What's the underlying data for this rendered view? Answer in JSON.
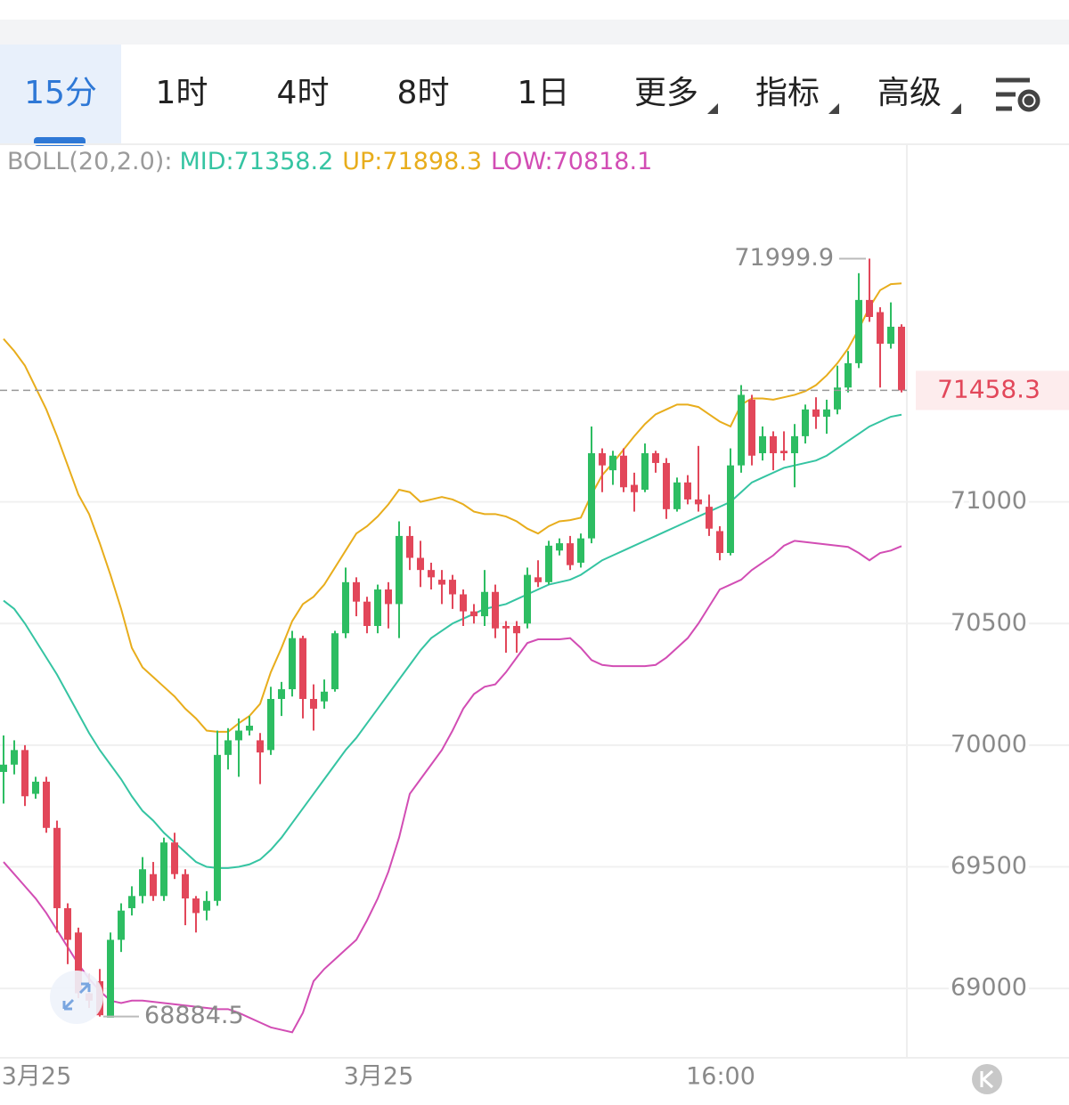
{
  "tabs": [
    "15分",
    "1时",
    "4时",
    "8时",
    "1日",
    "更多",
    "指标",
    "高级"
  ],
  "chart_data": {
    "type": "candlestick",
    "indicator_label": "BOLL(20,2.0):",
    "categories": [
      null,
      null,
      null,
      "3月25",
      null,
      null,
      null,
      null,
      null,
      null,
      null,
      null,
      null,
      null,
      null,
      null,
      null,
      null,
      null,
      null,
      null,
      null,
      null,
      null,
      null,
      null,
      null,
      null,
      null,
      null,
      null,
      null,
      null,
      null,
      null,
      "3月25",
      null,
      null,
      null,
      null,
      null,
      null,
      null,
      null,
      null,
      null,
      null,
      null,
      null,
      null,
      null,
      null,
      null,
      null,
      null,
      null,
      null,
      null,
      null,
      null,
      null,
      null,
      null,
      null,
      null,
      null,
      null,
      "16:00",
      null,
      null,
      null,
      null,
      null,
      null,
      null,
      null,
      null,
      null,
      null,
      null,
      null,
      null,
      null,
      null,
      null
    ],
    "open": [
      69890,
      69920,
      69980,
      69800,
      69850,
      69660,
      69330,
      69230,
      68980,
      69030,
      68880,
      69200,
      69330,
      69380,
      69470,
      69380,
      69600,
      69470,
      69370,
      69320,
      69360,
      69960,
      70020,
      70060,
      70020,
      69980,
      70190,
      70230,
      70440,
      70190,
      70180,
      70230,
      70460,
      70670,
      70590,
      70490,
      70640,
      70580,
      70860,
      70770,
      70720,
      70680,
      70680,
      70620,
      70550,
      70530,
      70630,
      70490,
      70490,
      70500,
      70690,
      70670,
      70800,
      70830,
      70750,
      70850,
      71200,
      71130,
      71190,
      71070,
      71050,
      71200,
      71160,
      70970,
      71080,
      71010,
      70980,
      70880,
      70790,
      71150,
      71420,
      71200,
      71270,
      71210,
      71200,
      71270,
      71380,
      71350,
      71380,
      71470,
      71570,
      71830,
      71780,
      71650,
      71720
    ],
    "high": [
      70040,
      70020,
      70000,
      69870,
      69870,
      69690,
      69350,
      69250,
      69060,
      69080,
      69230,
      69350,
      69420,
      69540,
      69520,
      69620,
      69640,
      69490,
      69380,
      69400,
      70060,
      70070,
      70110,
      70120,
      70050,
      70240,
      70260,
      70470,
      70450,
      70250,
      70270,
      70470,
      70730,
      70690,
      70610,
      70660,
      70670,
      70920,
      70900,
      70840,
      70750,
      70720,
      70700,
      70640,
      70580,
      70720,
      70660,
      70510,
      70510,
      70730,
      70760,
      70840,
      70850,
      70860,
      70870,
      71310,
      71220,
      71210,
      71220,
      71120,
      71240,
      71210,
      71180,
      71100,
      71110,
      71230,
      71030,
      70900,
      71220,
      71480,
      71440,
      71310,
      71290,
      71290,
      71320,
      71400,
      71430,
      71420,
      71560,
      71620,
      71940,
      71999.9,
      71800,
      71820,
      71730
    ],
    "low": [
      69760,
      69880,
      69750,
      69780,
      69640,
      69230,
      69100,
      68960,
      68920,
      68884.5,
      68900,
      69150,
      69300,
      69350,
      69360,
      69360,
      69450,
      69260,
      69230,
      69280,
      69340,
      69900,
      69870,
      70040,
      69840,
      69960,
      70120,
      70200,
      70110,
      70060,
      70150,
      70220,
      70440,
      70530,
      70460,
      70460,
      70480,
      70440,
      70720,
      70650,
      70640,
      70580,
      70560,
      70490,
      70500,
      70490,
      70440,
      70380,
      70380,
      70480,
      70650,
      70660,
      70780,
      70720,
      70730,
      70830,
      71040,
      71070,
      71040,
      70960,
      71040,
      71120,
      70930,
      70960,
      70990,
      70960,
      70860,
      70760,
      70780,
      71120,
      71150,
      71170,
      71130,
      71170,
      71060,
      71240,
      71300,
      71280,
      71360,
      71450,
      71550,
      71740,
      71470,
      71630,
      71450
    ],
    "close": [
      69920,
      69980,
      69790,
      69850,
      69660,
      69330,
      69200,
      68980,
      68950,
      68890,
      69200,
      69320,
      69380,
      69490,
      69380,
      69600,
      69470,
      69370,
      69310,
      69360,
      69960,
      70020,
      70060,
      70080,
      69970,
      70190,
      70230,
      70440,
      70190,
      70150,
      70220,
      70460,
      70670,
      70590,
      70490,
      70640,
      70580,
      70860,
      70770,
      70720,
      70690,
      70660,
      70620,
      70550,
      70530,
      70630,
      70480,
      70480,
      70460,
      70700,
      70670,
      70820,
      70830,
      70740,
      70850,
      71200,
      71150,
      71190,
      71060,
      71040,
      71200,
      71160,
      70970,
      71080,
      71010,
      70990,
      70890,
      70790,
      71150,
      71440,
      71190,
      71270,
      71200,
      71200,
      71270,
      71380,
      71350,
      71380,
      71470,
      71570,
      71830,
      71760,
      71650,
      71720,
      71458.3
    ],
    "up_color": "#2dbd62",
    "down_color": "#e2475a",
    "series": [
      {
        "name": "MID:",
        "color": "#35c4a2",
        "values": [
          70594,
          70560,
          70500,
          70430,
          70360,
          70290,
          70210,
          70130,
          70050,
          69980,
          69920,
          69860,
          69790,
          69730,
          69690,
          69640,
          69600,
          69560,
          69520,
          69500,
          69495,
          69495,
          69500,
          69510,
          69530,
          69570,
          69620,
          69680,
          69740,
          69800,
          69860,
          69920,
          69980,
          70030,
          70090,
          70150,
          70210,
          70270,
          70330,
          70390,
          70440,
          70470,
          70500,
          70520,
          70540,
          70560,
          70570,
          70580,
          70600,
          70620,
          70640,
          70660,
          70670,
          70680,
          70700,
          70730,
          70760,
          70780,
          70800,
          70820,
          70840,
          70860,
          70880,
          70900,
          70920,
          70940,
          70960,
          70980,
          71000,
          71040,
          71080,
          71100,
          71120,
          71140,
          71150,
          71160,
          71170,
          71190,
          71220,
          71250,
          71280,
          71310,
          71330,
          71350,
          71358.2
        ]
      },
      {
        "name": "UP:",
        "color": "#e8ad1c",
        "values": [
          71670,
          71620,
          71560,
          71470,
          71380,
          71270,
          71150,
          71030,
          70950,
          70830,
          70700,
          70560,
          70400,
          70320,
          70280,
          70240,
          70200,
          70150,
          70110,
          70060,
          70055,
          70055,
          70090,
          70120,
          70170,
          70300,
          70400,
          70510,
          70580,
          70610,
          70660,
          70730,
          70800,
          70870,
          70900,
          70940,
          70990,
          71050,
          71040,
          71000,
          71010,
          71020,
          71010,
          70990,
          70960,
          70950,
          70950,
          70940,
          70920,
          70890,
          70870,
          70900,
          70920,
          70925,
          70935,
          71030,
          71110,
          71160,
          71215,
          71270,
          71320,
          71360,
          71380,
          71400,
          71400,
          71390,
          71360,
          71330,
          71310,
          71400,
          71425,
          71425,
          71420,
          71430,
          71440,
          71455,
          71480,
          71520,
          71570,
          71630,
          71710,
          71800,
          71870,
          71895,
          71898.3
        ]
      },
      {
        "name": "LOW:",
        "color": "#d24db4",
        "values": [
          69520,
          69470,
          69420,
          69370,
          69310,
          69240,
          69170,
          69100,
          69040,
          68990,
          68950,
          68940,
          68950,
          68950,
          68945,
          68940,
          68935,
          68930,
          68925,
          68920,
          68915,
          68915,
          68900,
          68880,
          68860,
          68840,
          68830,
          68820,
          68900,
          69030,
          69080,
          69120,
          69160,
          69200,
          69280,
          69370,
          69480,
          69620,
          69800,
          69860,
          69920,
          69980,
          70060,
          70150,
          70210,
          70240,
          70250,
          70300,
          70360,
          70420,
          70435,
          70435,
          70435,
          70440,
          70400,
          70350,
          70330,
          70325,
          70325,
          70325,
          70325,
          70330,
          70360,
          70400,
          70440,
          70500,
          70570,
          70640,
          70660,
          70680,
          70720,
          70750,
          70780,
          70820,
          70840,
          70835,
          70830,
          70825,
          70820,
          70815,
          70790,
          70760,
          70790,
          70800,
          70818.1
        ]
      }
    ],
    "ylim": [
      68715,
      72470
    ],
    "yticks": [
      69000,
      69500,
      70000,
      70500,
      71000
    ],
    "grid": true
  }
}
